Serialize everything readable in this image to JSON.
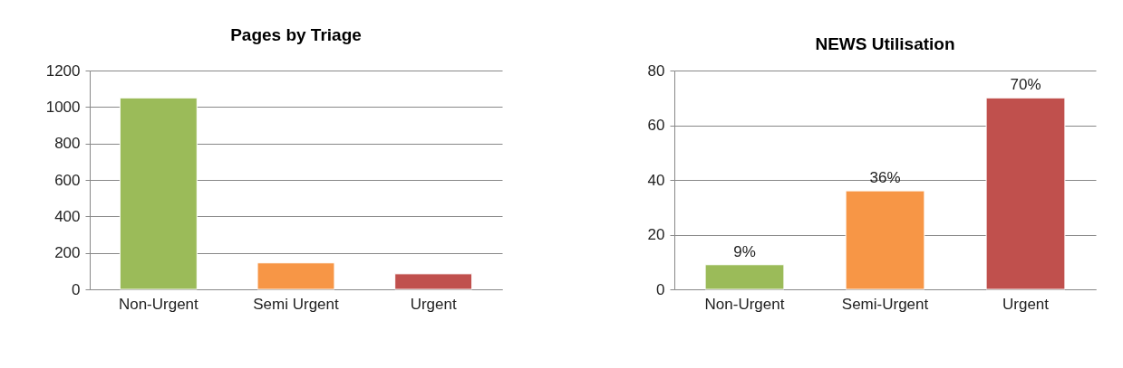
{
  "chart_data": [
    {
      "type": "bar",
      "title": "Pages by Triage",
      "categories": [
        "Non-Urgent",
        "Semi Urgent",
        "Urgent"
      ],
      "values": [
        1050,
        145,
        85
      ],
      "colors": [
        "#9bbb59",
        "#f79646",
        "#c0504d"
      ],
      "ylim": [
        0,
        1200
      ],
      "yticks": [
        0,
        200,
        400,
        600,
        800,
        1000,
        1200
      ],
      "grid": "y",
      "legend": false
    },
    {
      "type": "bar",
      "title": "NEWS Utilisation",
      "categories": [
        "Non-Urgent",
        "Semi-Urgent",
        "Urgent"
      ],
      "values": [
        9,
        36,
        70
      ],
      "colors": [
        "#9bbb59",
        "#f79646",
        "#c0504d"
      ],
      "value_labels": [
        "9%",
        "36%",
        "70%"
      ],
      "ylim": [
        0,
        80
      ],
      "yticks": [
        0,
        20,
        40,
        60,
        80
      ],
      "grid": "y",
      "legend": false
    }
  ]
}
